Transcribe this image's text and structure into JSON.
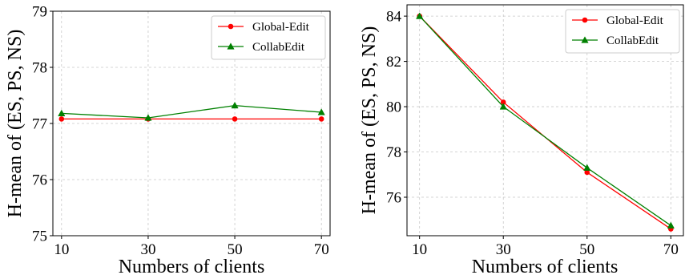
{
  "chart_data": [
    {
      "type": "line",
      "title": "",
      "xlabel": "Numbers of clients",
      "ylabel": "H-mean of (ES, PS, NS)",
      "x": [
        10,
        30,
        50,
        70
      ],
      "x_ticks": [
        "10",
        "30",
        "50",
        "70"
      ],
      "xlim": [
        8,
        72
      ],
      "ylim": [
        75,
        79
      ],
      "y_ticks": [
        "75",
        "76",
        "77",
        "78",
        "79"
      ],
      "grid": true,
      "legend_position": "top-right",
      "series": [
        {
          "name": "Global-Edit",
          "color": "#ff0000",
          "marker": "circle",
          "values": [
            77.08,
            77.08,
            77.08,
            77.08
          ]
        },
        {
          "name": "CollabEdit",
          "color": "#008000",
          "marker": "triangle",
          "values": [
            77.18,
            77.1,
            77.32,
            77.2
          ]
        }
      ]
    },
    {
      "type": "line",
      "title": "",
      "xlabel": "Numbers of clients",
      "ylabel": "H-mean of (ES, PS, NS)",
      "x": [
        10,
        30,
        50,
        70
      ],
      "x_ticks": [
        "10",
        "30",
        "50",
        "70"
      ],
      "xlim": [
        7,
        73
      ],
      "ylim": [
        74.3,
        84.5
      ],
      "y_ticks": [
        "76",
        "78",
        "80",
        "82",
        "84"
      ],
      "grid": true,
      "legend_position": "top-right",
      "series": [
        {
          "name": "Global-Edit",
          "color": "#ff0000",
          "marker": "circle",
          "values": [
            84.0,
            80.2,
            77.1,
            74.6
          ]
        },
        {
          "name": "CollabEdit",
          "color": "#008000",
          "marker": "triangle",
          "values": [
            84.0,
            80.0,
            77.3,
            74.75
          ]
        }
      ]
    }
  ]
}
